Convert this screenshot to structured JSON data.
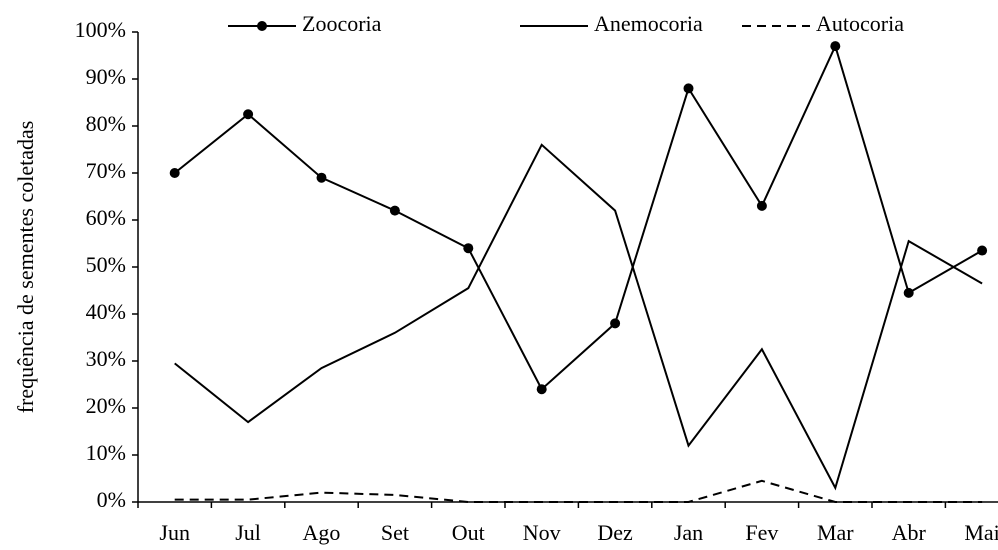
{
  "chart_data": {
    "type": "line",
    "y_label": "frequência de sementes coletadas",
    "categories": [
      "Jun",
      "Jul",
      "Ago",
      "Set",
      "Out",
      "Nov",
      "Dez",
      "Jan",
      "Fev",
      "Mar",
      "Abr",
      "Mai"
    ],
    "series": [
      {
        "name": "Zoocoria",
        "color": "#000000",
        "marker": "circle",
        "dash": "solid",
        "values": [
          70,
          82.5,
          69,
          62,
          54,
          24,
          38,
          88,
          63,
          97,
          44.5,
          53.5
        ]
      },
      {
        "name": "Anemocoria",
        "color": "#000000",
        "marker": "none",
        "dash": "solid",
        "values": [
          29.5,
          17,
          28.5,
          36,
          45.5,
          76,
          62,
          12,
          32.5,
          3,
          55.5,
          46.5
        ]
      },
      {
        "name": "Autocoria",
        "color": "#000000",
        "marker": "none",
        "dash": "dashed",
        "values": [
          0.5,
          0.5,
          2,
          1.5,
          0,
          0,
          0,
          0,
          4.5,
          0,
          0,
          0
        ]
      }
    ],
    "ylim": [
      0,
      100
    ],
    "yticks": [
      {
        "value": 0,
        "label": "0%"
      },
      {
        "value": 10,
        "label": "10%"
      },
      {
        "value": 20,
        "label": "20%"
      },
      {
        "value": 30,
        "label": "30%"
      },
      {
        "value": 40,
        "label": "40%"
      },
      {
        "value": 50,
        "label": "50%"
      },
      {
        "value": 60,
        "label": "60%"
      },
      {
        "value": 70,
        "label": "70%"
      },
      {
        "value": 80,
        "label": "80%"
      },
      {
        "value": 90,
        "label": "90%"
      },
      {
        "value": 100,
        "label": "100%"
      }
    ],
    "legend": "top",
    "grid": false
  }
}
